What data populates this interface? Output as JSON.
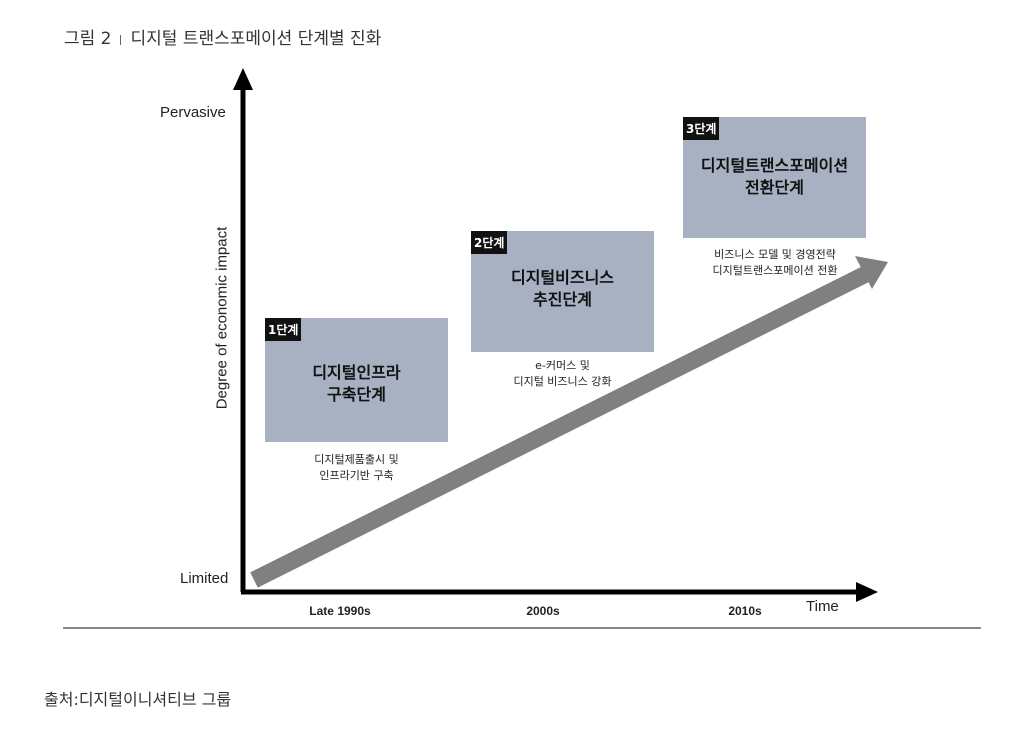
{
  "figure": {
    "label": "그림 2",
    "title": "디지털 트랜스포메이션 단계별 진화"
  },
  "axes": {
    "y_title": "Degree of economic impact",
    "y_high": "Pervasive",
    "y_low": "Limited",
    "x_title": "Time",
    "x_ticks": [
      "Late 1990s",
      "2000s",
      "2010s"
    ]
  },
  "stages": [
    {
      "badge": "1단계",
      "title_line1": "디지털인프라",
      "title_line2": "구축단계",
      "desc_line1": "디지털제품출시 및",
      "desc_line2": "인프라기반 구축"
    },
    {
      "badge": "2단계",
      "title_line1": "디지털비즈니스",
      "title_line2": "추진단계",
      "desc_line1": "e-커머스 및",
      "desc_line2": "디지털 비즈니스 강화"
    },
    {
      "badge": "3단계",
      "title_line1": "디지털트랜스포메이션",
      "title_line2": "전환단계",
      "desc_line1": "비즈니스 모델 및 경영전략",
      "desc_line2": "디지털트랜스포메이션 전환"
    }
  ],
  "colors": {
    "box_fill": "#a8b1c2",
    "badge_fill": "#111111",
    "trend_arrow": "#808080",
    "axis": "#000000"
  },
  "source": "출처:디지털이니셔티브 그룹"
}
